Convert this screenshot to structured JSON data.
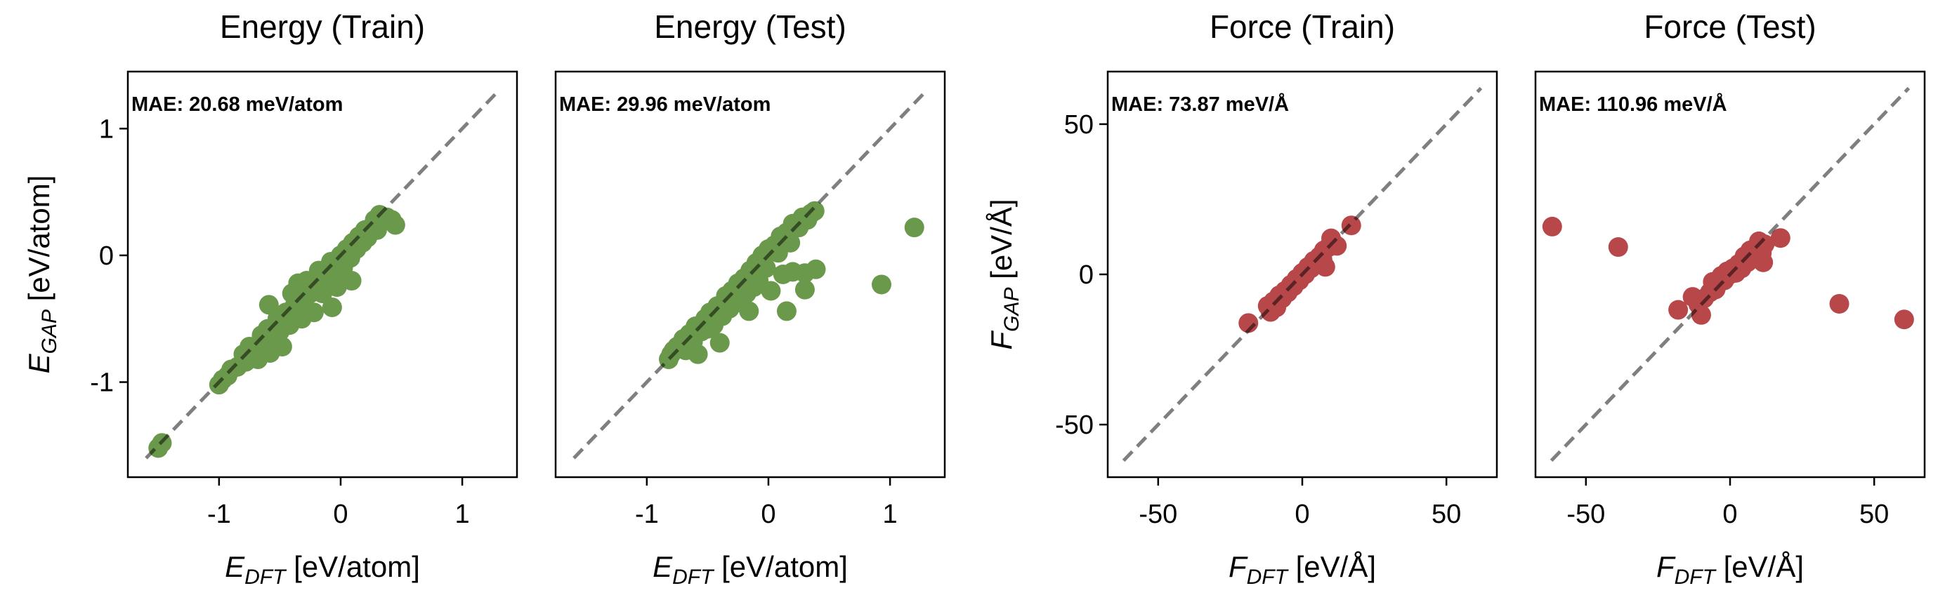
{
  "chart_data": [
    {
      "type": "scatter",
      "title": "Energy (Train)",
      "annotation": "MAE: 20.68 meV/atom",
      "xlabel": {
        "main": "E",
        "sub": "DFT",
        "unit": " [eV/atom]"
      },
      "ylabel": {
        "main": "E",
        "sub": "GAP",
        "unit": " [eV/atom]"
      },
      "xlim": [
        -1.75,
        1.45
      ],
      "ylim": [
        -1.75,
        1.45
      ],
      "xticks": [
        {
          "v": -1,
          "label": "-1"
        },
        {
          "v": 0,
          "label": "0"
        },
        {
          "v": 1,
          "label": "1"
        }
      ],
      "yticks": [
        {
          "v": -1,
          "label": "-1"
        },
        {
          "v": 0,
          "label": "0"
        },
        {
          "v": 1,
          "label": "1"
        }
      ],
      "show_yticks": true,
      "reference_line": [
        -1.6,
        1.3
      ],
      "color": "#6a994b",
      "points": [
        [
          -1.5,
          -1.52
        ],
        [
          -1.47,
          -1.48
        ],
        [
          -1.0,
          -1.02
        ],
        [
          -0.97,
          -0.98
        ],
        [
          -0.93,
          -0.95
        ],
        [
          -0.9,
          -0.9
        ],
        [
          -0.85,
          -0.88
        ],
        [
          -0.8,
          -0.78
        ],
        [
          -0.78,
          -0.84
        ],
        [
          -0.75,
          -0.72
        ],
        [
          -0.7,
          -0.75
        ],
        [
          -0.68,
          -0.82
        ],
        [
          -0.65,
          -0.63
        ],
        [
          -0.62,
          -0.7
        ],
        [
          -0.6,
          -0.58
        ],
        [
          -0.58,
          -0.77
        ],
        [
          -0.55,
          -0.66
        ],
        [
          -0.52,
          -0.5
        ],
        [
          -0.5,
          -0.6
        ],
        [
          -0.48,
          -0.72
        ],
        [
          -0.59,
          -0.39
        ],
        [
          -0.45,
          -0.45
        ],
        [
          -0.42,
          -0.55
        ],
        [
          -0.4,
          -0.3
        ],
        [
          -0.38,
          -0.4
        ],
        [
          -0.35,
          -0.22
        ],
        [
          -0.32,
          -0.5
        ],
        [
          -0.3,
          -0.35
        ],
        [
          -0.28,
          -0.2
        ],
        [
          -0.25,
          -0.3
        ],
        [
          -0.22,
          -0.45
        ],
        [
          -0.2,
          -0.25
        ],
        [
          -0.18,
          -0.12
        ],
        [
          -0.15,
          -0.3
        ],
        [
          -0.12,
          -0.2
        ],
        [
          -0.07,
          -0.41
        ],
        [
          -0.08,
          -0.05
        ],
        [
          -0.05,
          -0.15
        ],
        [
          -0.03,
          -0.25
        ],
        [
          0.0,
          0.0
        ],
        [
          0.02,
          -0.1
        ],
        [
          0.05,
          0.05
        ],
        [
          0.09,
          -0.2
        ],
        [
          0.08,
          -0.02
        ],
        [
          0.1,
          0.1
        ],
        [
          0.13,
          0.05
        ],
        [
          0.15,
          0.15
        ],
        [
          0.18,
          0.1
        ],
        [
          0.2,
          0.2
        ],
        [
          0.25,
          0.22
        ],
        [
          0.28,
          0.28
        ],
        [
          0.32,
          0.32
        ],
        [
          0.38,
          0.3
        ],
        [
          0.42,
          0.28
        ],
        [
          0.45,
          0.24
        ],
        [
          0.3,
          0.2
        ],
        [
          0.22,
          0.14
        ]
      ]
    },
    {
      "type": "scatter",
      "title": "Energy (Test)",
      "annotation": "MAE: 29.96 meV/atom",
      "xlabel": {
        "main": "E",
        "sub": "DFT",
        "unit": " [eV/atom]"
      },
      "xlim": [
        -1.75,
        1.45
      ],
      "ylim": [
        -1.75,
        1.45
      ],
      "xticks": [
        {
          "v": -1,
          "label": "-1"
        },
        {
          "v": 0,
          "label": "0"
        },
        {
          "v": 1,
          "label": "1"
        }
      ],
      "show_yticks": false,
      "reference_line": [
        -1.6,
        1.3
      ],
      "color": "#6a994b",
      "points": [
        [
          -0.82,
          -0.82
        ],
        [
          -0.8,
          -0.78
        ],
        [
          -0.78,
          -0.75
        ],
        [
          -0.75,
          -0.72
        ],
        [
          -0.72,
          -0.7
        ],
        [
          -0.7,
          -0.66
        ],
        [
          -0.68,
          -0.75
        ],
        [
          -0.65,
          -0.62
        ],
        [
          -0.62,
          -0.68
        ],
        [
          -0.6,
          -0.56
        ],
        [
          -0.58,
          -0.78
        ],
        [
          -0.55,
          -0.6
        ],
        [
          -0.52,
          -0.5
        ],
        [
          -0.5,
          -0.58
        ],
        [
          -0.48,
          -0.45
        ],
        [
          -0.45,
          -0.55
        ],
        [
          -0.42,
          -0.4
        ],
        [
          -0.4,
          -0.69
        ],
        [
          -0.38,
          -0.48
        ],
        [
          -0.35,
          -0.32
        ],
        [
          -0.32,
          -0.42
        ],
        [
          -0.3,
          -0.28
        ],
        [
          -0.28,
          -0.38
        ],
        [
          -0.25,
          -0.22
        ],
        [
          -0.22,
          -0.35
        ],
        [
          -0.2,
          -0.18
        ],
        [
          -0.18,
          -0.3
        ],
        [
          -0.16,
          -0.44
        ],
        [
          -0.15,
          -0.12
        ],
        [
          -0.12,
          -0.25
        ],
        [
          -0.1,
          -0.06
        ],
        [
          -0.08,
          -0.2
        ],
        [
          -0.05,
          0.0
        ],
        [
          -0.02,
          -0.1
        ],
        [
          0.0,
          0.05
        ],
        [
          0.02,
          -0.28
        ],
        [
          0.05,
          0.08
        ],
        [
          0.08,
          0.02
        ],
        [
          0.1,
          0.15
        ],
        [
          0.12,
          -0.15
        ],
        [
          0.15,
          0.18
        ],
        [
          0.15,
          -0.44
        ],
        [
          0.18,
          0.1
        ],
        [
          0.2,
          0.25
        ],
        [
          0.2,
          -0.13
        ],
        [
          0.25,
          0.22
        ],
        [
          0.28,
          0.3
        ],
        [
          0.3,
          -0.27
        ],
        [
          0.3,
          -0.14
        ],
        [
          0.32,
          0.28
        ],
        [
          0.35,
          0.33
        ],
        [
          0.38,
          0.35
        ],
        [
          0.39,
          -0.11
        ],
        [
          0.93,
          -0.23
        ],
        [
          1.2,
          0.22
        ]
      ]
    },
    {
      "type": "scatter",
      "title": "Force (Train)",
      "annotation": "MAE: 73.87 meV/Å",
      "xlabel": {
        "main": "F",
        "sub": "DFT",
        "unit": " [eV/Å]"
      },
      "ylabel": {
        "main": "F",
        "sub": "GAP",
        "unit": " [eV/Å]"
      },
      "xlim": [
        -67.5,
        67.5
      ],
      "ylim": [
        -67.5,
        67.5
      ],
      "xticks": [
        {
          "v": -50,
          "label": "-50"
        },
        {
          "v": 0,
          "label": "0"
        },
        {
          "v": 50,
          "label": "50"
        }
      ],
      "yticks": [
        {
          "v": -50,
          "label": "-50"
        },
        {
          "v": 0,
          "label": "0"
        },
        {
          "v": 50,
          "label": "50"
        }
      ],
      "show_yticks": true,
      "reference_line": [
        -62,
        62
      ],
      "color": "#b8474a",
      "points": [
        [
          -18.7,
          -16.2
        ],
        [
          -12,
          -10.5
        ],
        [
          -11,
          -12.5
        ],
        [
          -10,
          -9
        ],
        [
          -9,
          -11
        ],
        [
          -8,
          -7
        ],
        [
          -7,
          -8
        ],
        [
          -6,
          -5.5
        ],
        [
          -5,
          -6
        ],
        [
          -4,
          -3.5
        ],
        [
          -3,
          -4
        ],
        [
          -2,
          -1.5
        ],
        [
          -1,
          -2
        ],
        [
          0,
          0.5
        ],
        [
          1,
          0
        ],
        [
          2,
          2.5
        ],
        [
          3,
          2
        ],
        [
          4,
          4.5
        ],
        [
          5,
          3.5
        ],
        [
          6,
          6
        ],
        [
          7,
          5
        ],
        [
          7.5,
          8
        ],
        [
          8,
          2.5
        ],
        [
          9,
          9
        ],
        [
          10,
          12
        ],
        [
          11,
          10
        ],
        [
          12,
          9.5
        ],
        [
          17,
          16.3
        ]
      ]
    },
    {
      "type": "scatter",
      "title": "Force (Test)",
      "annotation": "MAE: 110.96 meV/Å",
      "xlabel": {
        "main": "F",
        "sub": "DFT",
        "unit": " [eV/Å]"
      },
      "xlim": [
        -67.5,
        67.5
      ],
      "ylim": [
        -67.5,
        67.5
      ],
      "xticks": [
        {
          "v": -50,
          "label": "-50"
        },
        {
          "v": 0,
          "label": "0"
        },
        {
          "v": 50,
          "label": "50"
        }
      ],
      "show_yticks": false,
      "reference_line": [
        -62,
        62
      ],
      "color": "#b8474a",
      "points": [
        [
          -61.7,
          15.9
        ],
        [
          -38.8,
          9.1
        ],
        [
          -18,
          -11.8
        ],
        [
          -13,
          -7.5
        ],
        [
          -11,
          -10
        ],
        [
          -10,
          -13.5
        ],
        [
          -9,
          -8
        ],
        [
          -7,
          -6
        ],
        [
          -6,
          -2.5
        ],
        [
          -5,
          -5
        ],
        [
          -4,
          -3
        ],
        [
          -3,
          -0.5
        ],
        [
          -2,
          -2
        ],
        [
          -1,
          1
        ],
        [
          0,
          0
        ],
        [
          1,
          2
        ],
        [
          2,
          0.5
        ],
        [
          3,
          3.5
        ],
        [
          4,
          2
        ],
        [
          5,
          6
        ],
        [
          6,
          4
        ],
        [
          7,
          8
        ],
        [
          8,
          6.5
        ],
        [
          9,
          9
        ],
        [
          10,
          11
        ],
        [
          11,
          7
        ],
        [
          12,
          10
        ],
        [
          11.5,
          4
        ],
        [
          17.5,
          12.1
        ],
        [
          37.9,
          -9.8
        ],
        [
          60.4,
          -15
        ]
      ]
    }
  ]
}
